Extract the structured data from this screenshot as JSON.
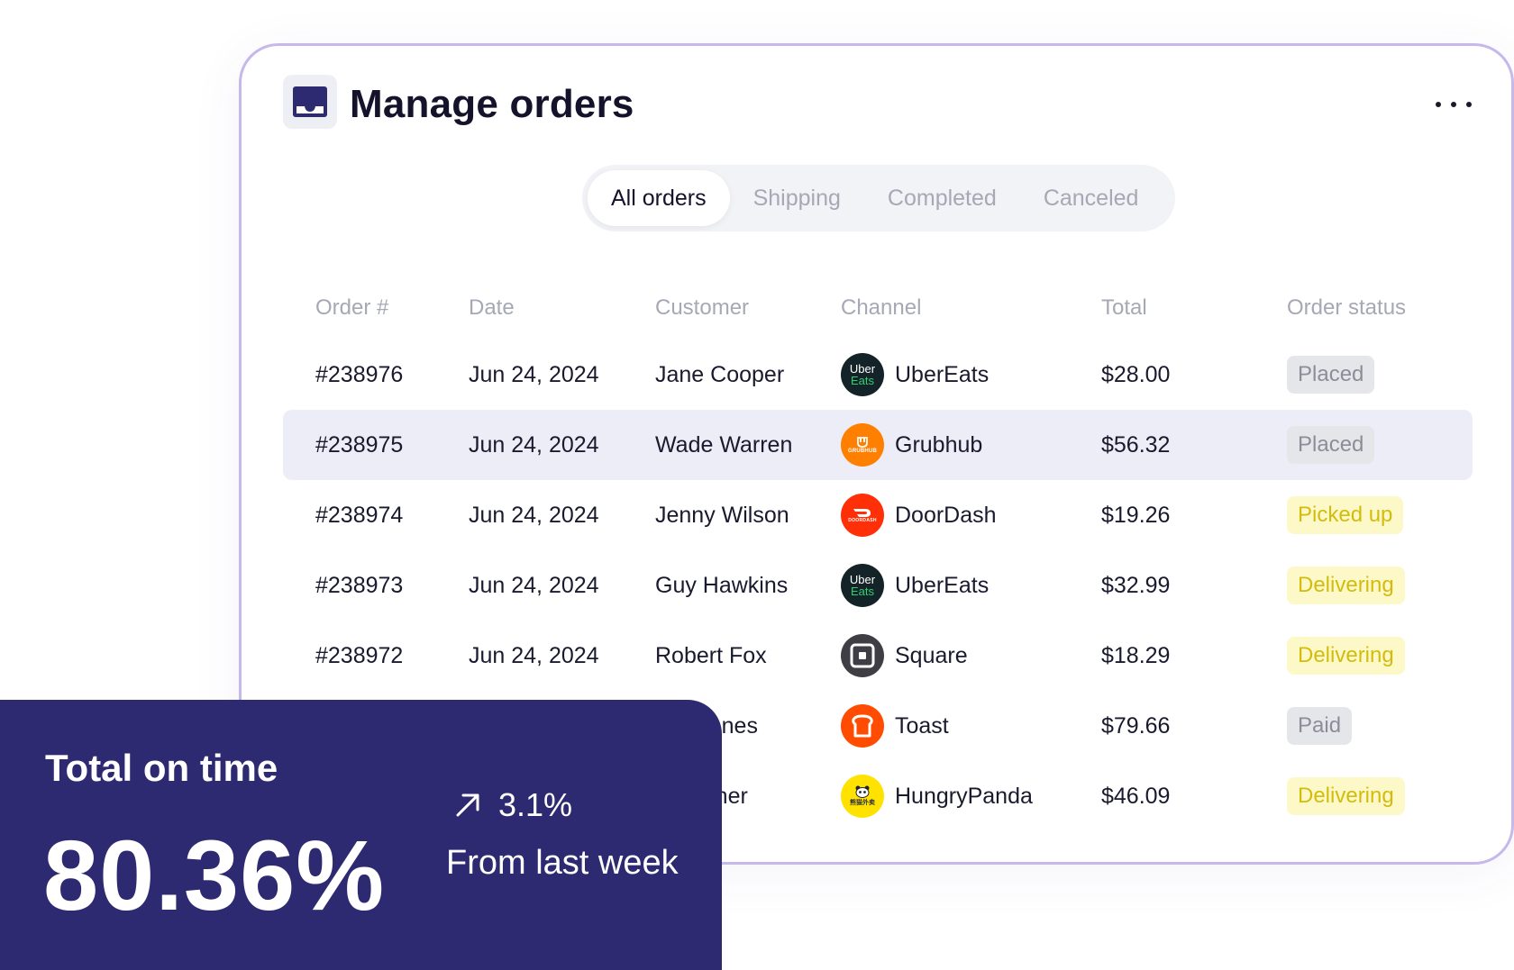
{
  "header": {
    "title": "Manage orders",
    "icon": "inbox-icon",
    "more_icon": "more-horizontal-icon"
  },
  "tabs": [
    {
      "label": "All orders",
      "active": true
    },
    {
      "label": "Shipping",
      "active": false
    },
    {
      "label": "Completed",
      "active": false
    },
    {
      "label": "Canceled",
      "active": false
    }
  ],
  "table": {
    "columns": [
      "Order #",
      "Date",
      "Customer",
      "Channel",
      "Total",
      "Order status"
    ],
    "rows": [
      {
        "order": "#238976",
        "date": "Jun 24, 2024",
        "customer": "Jane Cooper",
        "channel": "UberEats",
        "total": "$28.00",
        "status": "Placed"
      },
      {
        "order": "#238975",
        "date": "Jun 24, 2024",
        "customer": "Wade Warren",
        "channel": "Grubhub",
        "total": "$56.32",
        "status": "Placed"
      },
      {
        "order": "#238974",
        "date": "Jun 24, 2024",
        "customer": "Jenny Wilson",
        "channel": "DoorDash",
        "total": "$19.26",
        "status": "Picked up"
      },
      {
        "order": "#238973",
        "date": "Jun 24, 2024",
        "customer": "Guy Hawkins",
        "channel": "UberEats",
        "total": "$32.99",
        "status": "Delivering"
      },
      {
        "order": "#238972",
        "date": "Jun 24, 2024",
        "customer": "Robert Fox",
        "channel": "Square",
        "total": "$18.29",
        "status": "Delivering"
      },
      {
        "order": "",
        "date": "",
        "customer": "cob Jones",
        "channel": "Toast",
        "total": "$79.66",
        "status": "Paid"
      },
      {
        "order": "",
        "date": "",
        "customer": "dy Fisher",
        "channel": "HungryPanda",
        "total": "$46.09",
        "status": "Delivering"
      }
    ],
    "logo_text": {
      "uber_line1": "Uber",
      "uber_line2": "Eats",
      "grubhub": "GRUBHUB",
      "doordash": "DOORDASH",
      "panda": "熊猫外卖"
    }
  },
  "stat": {
    "label": "Total on time",
    "value": "80.36%",
    "change": "3.1%",
    "subtext": "From last week",
    "arrow_icon": "arrow-up-right-icon"
  },
  "colors": {
    "card_border": "#c7b8ec",
    "stat_bg": "#2d2a71",
    "highlight_row": "#ecedf6",
    "badge_yellow_text": "#d3bc0d",
    "badge_gray_text": "#8b8d99"
  }
}
